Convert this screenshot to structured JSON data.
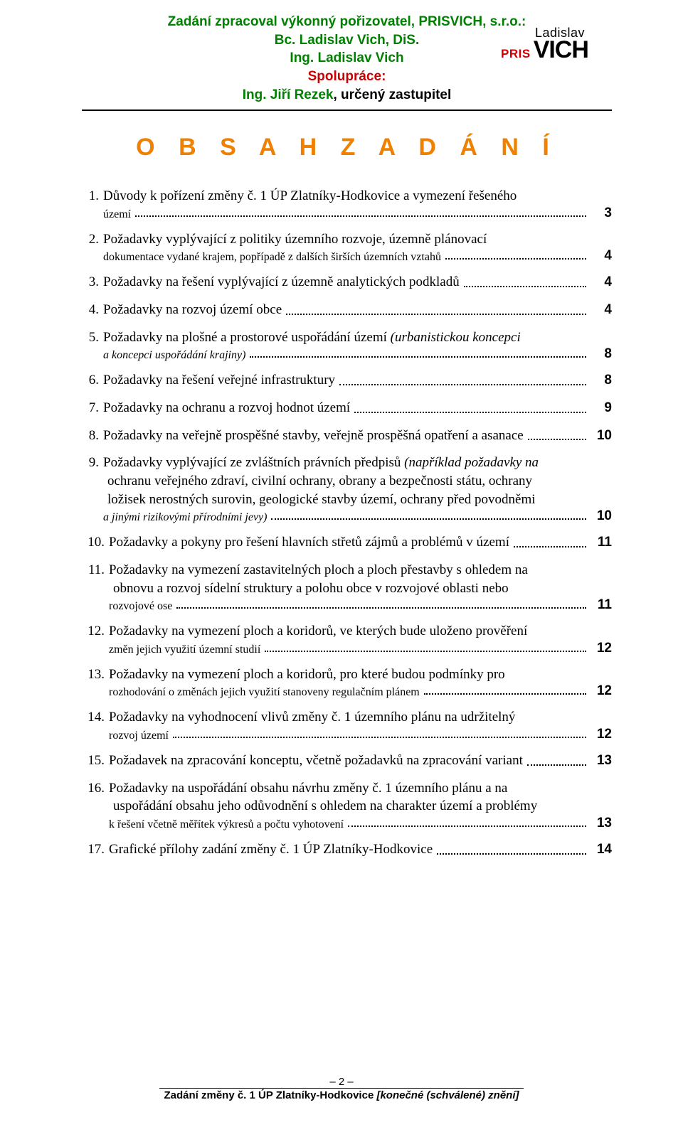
{
  "header": {
    "line1": "Zadání zpracoval výkonný pořizovatel, PRISVICH, s.r.o.:",
    "line2": "Bc. Ladislav Vich, DiS.",
    "line3": "Ing. Ladislav Vich",
    "line4": "Spolupráce:",
    "line5_a": "Ing. Jiří Rezek",
    "line5_b": ", určený zastupitel",
    "logo_top": "Ladislav",
    "logo_pris": "PRIS",
    "logo_vich": "VICH"
  },
  "title": "O B S A H   Z A D Á N Í",
  "toc": [
    {
      "num": "1.",
      "text": "Důvody k pořízení změny č. 1 ÚP Zlatníky-Hodkovice a vymezení řešeného",
      "cont": [
        "území"
      ],
      "page": "3"
    },
    {
      "num": "2.",
      "text": "Požadavky vyplývající z politiky územního rozvoje, územně plánovací",
      "cont": [
        "dokumentace vydané krajem, popřípadě z dalších širších územních vztahů"
      ],
      "page": "4"
    },
    {
      "num": "3.",
      "text": "Požadavky na řešení vyplývající z územně analytických podkladů",
      "page": "4"
    },
    {
      "num": "4.",
      "text": "Požadavky na rozvoj území obce",
      "page": "4"
    },
    {
      "num": "5.",
      "text_html": "Požadavky na plošné a prostorové uspořádání území <span class=\"italic\">(urbanistickou koncepci</span>",
      "cont_html": [
        "<span class=\"italic\">a koncepci uspořádání krajiny)</span>"
      ],
      "page": "8"
    },
    {
      "num": "6.",
      "text": "Požadavky na řešení veřejné infrastruktury",
      "page": "8"
    },
    {
      "num": "7.",
      "text": "Požadavky na ochranu a rozvoj hodnot území",
      "page": "9"
    },
    {
      "num": "8.",
      "text": "Požadavky na veřejně prospěšné stavby, veřejně prospěšná opatření a asanace",
      "page": "10"
    },
    {
      "num": "9.",
      "text_html": "Požadavky vyplývající ze zvláštních právních předpisů <span class=\"italic\">(například požadavky na</span>",
      "cont_html": [
        "<span class=\"italic\">ochranu veřejného zdraví, civilní ochrany, obrany a bezpečnosti státu, ochrany</span>",
        "<span class=\"italic\">ložisek nerostných surovin, geologické stavby území, ochrany před povodněmi</span>",
        "<span class=\"italic\">a jinými rizikovými přírodními jevy)</span>"
      ],
      "page": "10"
    },
    {
      "num": "10.",
      "text": "Požadavky a pokyny pro řešení hlavních střetů zájmů a problémů v území",
      "page": "11",
      "wide": true
    },
    {
      "num": "11.",
      "text": "Požadavky na vymezení zastavitelných ploch a ploch přestavby s ohledem na",
      "cont": [
        "obnovu a rozvoj sídelní struktury a polohu obce v rozvojové oblasti nebo",
        "rozvojové ose"
      ],
      "page": "11",
      "wide": true
    },
    {
      "num": "12.",
      "text": "Požadavky na vymezení ploch a koridorů, ve kterých bude uloženo prověření",
      "cont": [
        "změn jejich využití územní studií"
      ],
      "page": "12",
      "wide": true
    },
    {
      "num": "13.",
      "text": "Požadavky na vymezení ploch a koridorů, pro které budou podmínky pro",
      "cont": [
        "rozhodování o změnách jejich využití stanoveny regulačním plánem"
      ],
      "page": "12",
      "wide": true
    },
    {
      "num": "14.",
      "text": "Požadavky na vyhodnocení vlivů změny č. 1 územního plánu na udržitelný",
      "cont": [
        "rozvoj území"
      ],
      "page": "12",
      "wide": true
    },
    {
      "num": "15.",
      "text": "Požadavek na zpracování konceptu, včetně požadavků na zpracování variant",
      "page": "13",
      "wide": true
    },
    {
      "num": "16.",
      "text": "Požadavky na uspořádání obsahu návrhu změny č. 1 územního plánu a na",
      "cont": [
        "uspořádání obsahu jeho odůvodnění s ohledem na charakter území a problémy",
        "k řešení včetně měřítek výkresů a počtu vyhotovení"
      ],
      "page": "13",
      "wide": true
    },
    {
      "num": "17.",
      "text": "Grafické přílohy zadání změny č. 1 ÚP Zlatníky-Hodkovice",
      "page": "14",
      "wide": true
    }
  ],
  "footer": {
    "page_num": "– 2 –",
    "text_a": "Zadání změny č. 1 ÚP Zlatníky-Hodkovice ",
    "text_b": "[konečné (schválené) znění]"
  },
  "colors": {
    "green": "#008000",
    "red": "#cc0000",
    "orange": "#f08000",
    "black": "#000000",
    "bg": "#ffffff"
  }
}
